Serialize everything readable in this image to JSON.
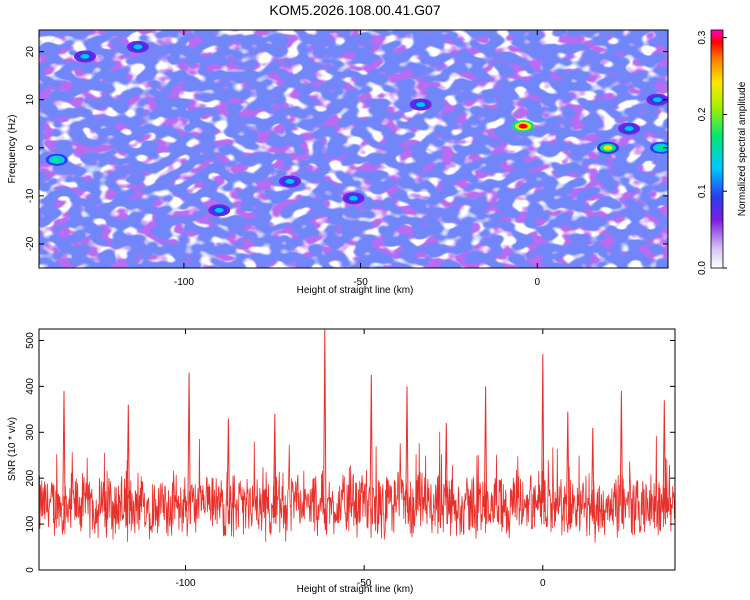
{
  "title": "KOM5.2026.108.00.41.G07",
  "colors": {
    "background": "#ffffff",
    "axis": "#000000",
    "snr_line": "#e8302a",
    "heatmap_low": "#ffffff",
    "heatmap_mid": "#7b1fe0",
    "heatmap_high": "#ff0000"
  },
  "chart_data": [
    {
      "type": "heatmap",
      "xlabel": "Height of straight line (km)",
      "ylabel": "Frequency (Hz)",
      "xlim": [
        -141,
        37
      ],
      "ylim": [
        -25,
        24.5
      ],
      "x_ticks": [
        -100,
        -50,
        0
      ],
      "x_tick_labels": [
        "-100",
        "-50",
        "0"
      ],
      "y_ticks": [
        -20,
        -10,
        0,
        10,
        20
      ],
      "y_tick_labels": [
        "-20",
        "-10",
        "0",
        "10",
        "20"
      ],
      "colorbar": {
        "label": "Normalized spectral amplitude",
        "range": [
          0.0,
          0.31
        ],
        "ticks": [
          0.0,
          0.1,
          0.2,
          0.3
        ],
        "tick_labels": [
          "0.0",
          "0.1",
          "0.2",
          "0.3"
        ]
      },
      "hotspots": [
        {
          "x": -4,
          "y": 4.5,
          "value": 0.3
        },
        {
          "x": 20,
          "y": 0,
          "value": 0.22
        },
        {
          "x": 35,
          "y": 0,
          "value": 0.17
        },
        {
          "x": -136,
          "y": -2.5,
          "value": 0.16
        },
        {
          "x": -70,
          "y": -7,
          "value": 0.13
        },
        {
          "x": -113,
          "y": 21,
          "value": 0.12
        },
        {
          "x": -33,
          "y": 9,
          "value": 0.12
        },
        {
          "x": 26,
          "y": 4,
          "value": 0.11
        },
        {
          "x": -90,
          "y": -13,
          "value": 0.12
        },
        {
          "x": -52,
          "y": -10.5,
          "value": 0.1
        },
        {
          "x": 34,
          "y": 10,
          "value": 0.1
        },
        {
          "x": -128,
          "y": 19,
          "value": 0.1
        }
      ]
    },
    {
      "type": "line",
      "series_name": "SNR",
      "xlabel": "Height of straight line (km)",
      "ylabel": "SNR (10 * v/v)",
      "xlim": [
        -141,
        37
      ],
      "ylim": [
        0,
        525
      ],
      "x_ticks": [
        -100,
        -50,
        0
      ],
      "x_tick_labels": [
        "-100",
        "-50",
        "0"
      ],
      "y_ticks": [
        0,
        100,
        200,
        300,
        400,
        500
      ],
      "y_tick_labels": [
        "0",
        "100",
        "200",
        "300",
        "400",
        "500"
      ],
      "noise_baseline": 140,
      "noise_spread": 55,
      "peaks": [
        {
          "x": -61,
          "y": 525
        },
        {
          "x": 0,
          "y": 470
        },
        {
          "x": -99,
          "y": 430
        },
        {
          "x": -48,
          "y": 425
        },
        {
          "x": -134,
          "y": 390
        },
        {
          "x": -38,
          "y": 400
        },
        {
          "x": -16,
          "y": 400
        },
        {
          "x": 22,
          "y": 390
        },
        {
          "x": 34,
          "y": 370
        },
        {
          "x": -116,
          "y": 360
        },
        {
          "x": -75,
          "y": 340
        },
        {
          "x": 7,
          "y": 345
        },
        {
          "x": -88,
          "y": 330
        },
        {
          "x": -27,
          "y": 320
        },
        {
          "x": 14,
          "y": 310
        }
      ]
    }
  ]
}
